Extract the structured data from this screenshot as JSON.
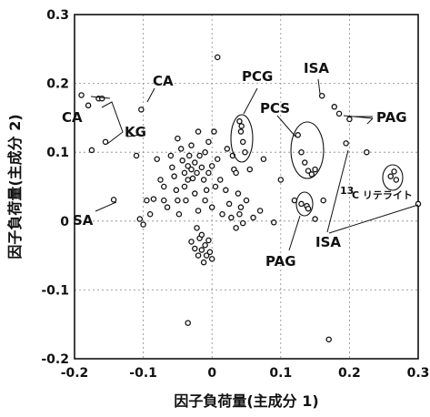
{
  "chart_data": {
    "type": "scatter",
    "xlabel": "因子負荷量(主成分 1)",
    "ylabel": "因子負荷量(主成分 2)",
    "xlim": [
      -0.2,
      0.3
    ],
    "ylim": [
      -0.2,
      0.3
    ],
    "x_ticks": [
      -0.2,
      -0.1,
      0,
      0.1,
      0.2,
      0.3
    ],
    "y_ticks": [
      -0.2,
      -0.1,
      0,
      0.1,
      0.2,
      0.3
    ],
    "x_tick_labels": [
      "-0.2",
      "-0.1",
      "0",
      "0.1",
      "0.2",
      "0.3"
    ],
    "y_tick_labels": [
      "-0.2",
      "-0.1",
      "0",
      "0.1",
      "0.2",
      "0.3"
    ],
    "grid": true,
    "annotations": {
      "ca_top": "CA",
      "ca_left": "CA",
      "kg": "KG",
      "sa": "SA",
      "pcg": "PCG",
      "pcs": "PCS",
      "isa_top": "ISA",
      "isa_bottom": "ISA",
      "pag_right": "PAG",
      "pag_bottom": "PAG",
      "c13_sup": "13",
      "c13_text": "C リテライト"
    },
    "points": [
      {
        "x": -0.19,
        "y": 0.183
      },
      {
        "x": -0.18,
        "y": 0.168
      },
      {
        "x": -0.165,
        "y": 0.178
      },
      {
        "x": -0.16,
        "y": 0.178
      },
      {
        "x": -0.175,
        "y": 0.103
      },
      {
        "x": -0.155,
        "y": 0.115
      },
      {
        "x": -0.103,
        "y": 0.162
      },
      {
        "x": -0.143,
        "y": 0.031
      },
      {
        "x": -0.11,
        "y": 0.095
      },
      {
        "x": -0.105,
        "y": 0.003
      },
      {
        "x": -0.1,
        "y": -0.005
      },
      {
        "x": -0.09,
        "y": 0.01
      },
      {
        "x": -0.095,
        "y": 0.03
      },
      {
        "x": -0.085,
        "y": 0.032
      },
      {
        "x": -0.08,
        "y": 0.09
      },
      {
        "x": -0.075,
        "y": 0.06
      },
      {
        "x": -0.07,
        "y": 0.05
      },
      {
        "x": -0.07,
        "y": 0.03
      },
      {
        "x": -0.065,
        "y": 0.02
      },
      {
        "x": -0.06,
        "y": 0.095
      },
      {
        "x": -0.058,
        "y": 0.078
      },
      {
        "x": -0.055,
        "y": 0.065
      },
      {
        "x": -0.052,
        "y": 0.045
      },
      {
        "x": -0.05,
        "y": 0.03
      },
      {
        "x": -0.05,
        "y": 0.12
      },
      {
        "x": -0.048,
        "y": 0.01
      },
      {
        "x": -0.045,
        "y": 0.105
      },
      {
        "x": -0.043,
        "y": 0.088
      },
      {
        "x": -0.04,
        "y": 0.07
      },
      {
        "x": -0.04,
        "y": 0.05
      },
      {
        "x": -0.038,
        "y": 0.03
      },
      {
        "x": -0.035,
        "y": 0.08
      },
      {
        "x": -0.035,
        "y": 0.06
      },
      {
        "x": -0.033,
        "y": 0.095
      },
      {
        "x": -0.03,
        "y": 0.11
      },
      {
        "x": -0.03,
        "y": 0.075
      },
      {
        "x": -0.028,
        "y": 0.062
      },
      {
        "x": -0.025,
        "y": 0.085
      },
      {
        "x": -0.025,
        "y": 0.04
      },
      {
        "x": -0.022,
        "y": 0.07
      },
      {
        "x": -0.02,
        "y": 0.13
      },
      {
        "x": -0.02,
        "y": 0.015
      },
      {
        "x": -0.018,
        "y": 0.095
      },
      {
        "x": -0.015,
        "y": 0.078
      },
      {
        "x": -0.012,
        "y": 0.06
      },
      {
        "x": -0.01,
        "y": 0.1
      },
      {
        "x": -0.01,
        "y": 0.03
      },
      {
        "x": -0.008,
        "y": 0.045
      },
      {
        "x": -0.005,
        "y": 0.115
      },
      {
        "x": -0.005,
        "y": 0.07
      },
      {
        "x": 0.0,
        "y": 0.08
      },
      {
        "x": 0.0,
        "y": 0.02
      },
      {
        "x": 0.003,
        "y": 0.13
      },
      {
        "x": 0.005,
        "y": 0.05
      },
      {
        "x": 0.008,
        "y": 0.09
      },
      {
        "x": 0.008,
        "y": 0.238
      },
      {
        "x": 0.012,
        "y": 0.06
      },
      {
        "x": 0.015,
        "y": 0.01
      },
      {
        "x": 0.02,
        "y": 0.045
      },
      {
        "x": 0.022,
        "y": 0.105
      },
      {
        "x": 0.025,
        "y": 0.025
      },
      {
        "x": 0.028,
        "y": 0.005
      },
      {
        "x": 0.03,
        "y": 0.095
      },
      {
        "x": 0.032,
        "y": 0.075
      },
      {
        "x": 0.035,
        "y": 0.07
      },
      {
        "x": 0.035,
        "y": -0.01
      },
      {
        "x": 0.038,
        "y": 0.04
      },
      {
        "x": 0.04,
        "y": 0.01
      },
      {
        "x": 0.042,
        "y": 0.02
      },
      {
        "x": 0.045,
        "y": -0.003
      },
      {
        "x": 0.05,
        "y": 0.03
      },
      {
        "x": 0.055,
        "y": 0.075
      },
      {
        "x": 0.06,
        "y": 0.005
      },
      {
        "x": 0.07,
        "y": 0.015
      },
      {
        "x": 0.075,
        "y": 0.09
      },
      {
        "x": 0.09,
        "y": -0.002
      },
      {
        "x": 0.1,
        "y": 0.06
      },
      {
        "x": 0.04,
        "y": 0.145
      },
      {
        "x": 0.042,
        "y": 0.13
      },
      {
        "x": 0.045,
        "y": 0.115
      },
      {
        "x": 0.048,
        "y": 0.1
      },
      {
        "x": 0.043,
        "y": 0.138
      },
      {
        "x": 0.125,
        "y": 0.125
      },
      {
        "x": 0.13,
        "y": 0.1
      },
      {
        "x": 0.135,
        "y": 0.085
      },
      {
        "x": 0.14,
        "y": 0.073
      },
      {
        "x": 0.145,
        "y": 0.068
      },
      {
        "x": 0.15,
        "y": 0.075
      },
      {
        "x": 0.12,
        "y": 0.03
      },
      {
        "x": 0.13,
        "y": 0.025
      },
      {
        "x": 0.138,
        "y": 0.022
      },
      {
        "x": 0.14,
        "y": 0.018
      },
      {
        "x": 0.16,
        "y": 0.182
      },
      {
        "x": 0.178,
        "y": 0.166
      },
      {
        "x": 0.185,
        "y": 0.156
      },
      {
        "x": 0.2,
        "y": 0.148
      },
      {
        "x": 0.195,
        "y": 0.113
      },
      {
        "x": 0.225,
        "y": 0.1
      },
      {
        "x": 0.26,
        "y": 0.065
      },
      {
        "x": 0.265,
        "y": 0.072
      },
      {
        "x": 0.268,
        "y": 0.06
      },
      {
        "x": 0.3,
        "y": 0.025
      },
      {
        "x": 0.15,
        "y": 0.003
      },
      {
        "x": 0.162,
        "y": 0.03
      },
      {
        "x": -0.03,
        "y": -0.03
      },
      {
        "x": -0.025,
        "y": -0.04
      },
      {
        "x": -0.02,
        "y": -0.05
      },
      {
        "x": -0.018,
        "y": -0.025
      },
      {
        "x": -0.015,
        "y": -0.042
      },
      {
        "x": -0.012,
        "y": -0.06
      },
      {
        "x": -0.01,
        "y": -0.035
      },
      {
        "x": -0.008,
        "y": -0.05
      },
      {
        "x": -0.005,
        "y": -0.028
      },
      {
        "x": -0.003,
        "y": -0.045
      },
      {
        "x": 0.0,
        "y": -0.055
      },
      {
        "x": -0.022,
        "y": -0.01
      },
      {
        "x": -0.015,
        "y": -0.02
      },
      {
        "x": -0.035,
        "y": -0.148
      },
      {
        "x": 0.17,
        "y": -0.172
      }
    ]
  }
}
